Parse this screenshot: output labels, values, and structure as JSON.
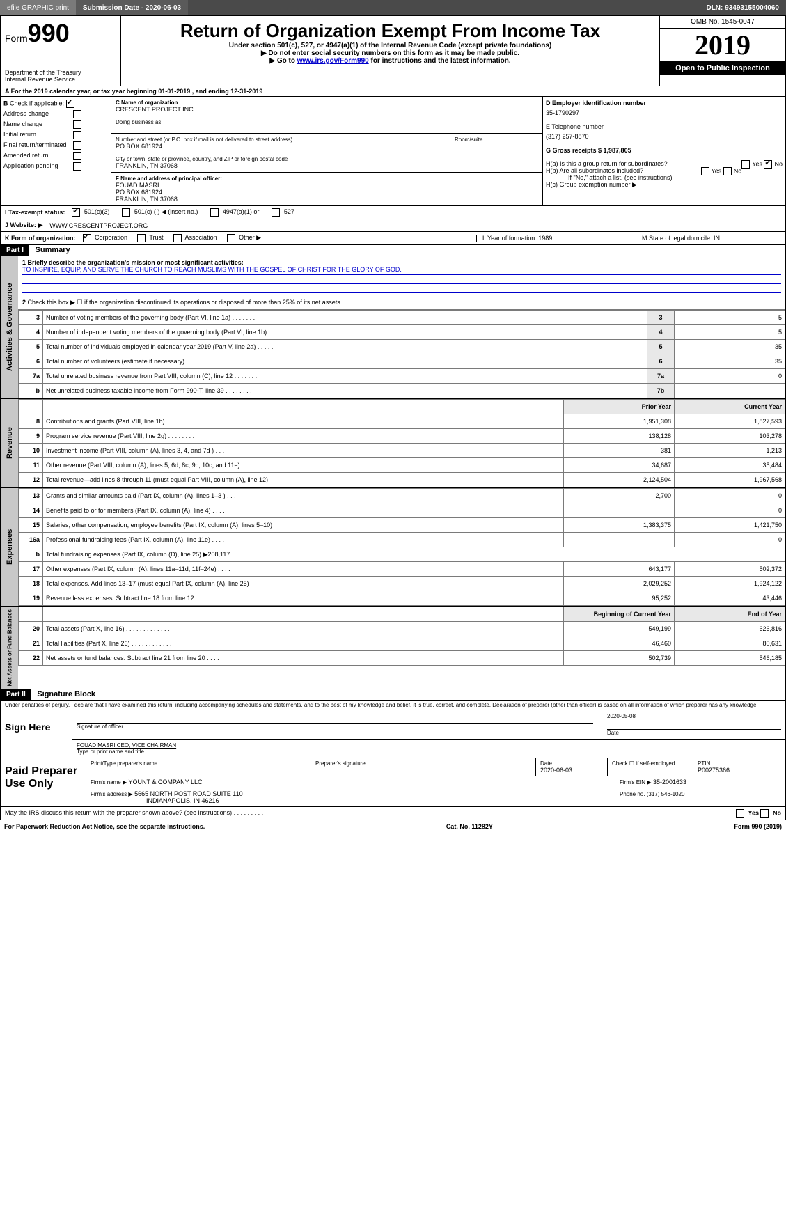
{
  "topbar": {
    "efile": "efile GRAPHIC print",
    "submission_label": "Submission Date - 2020-06-03",
    "dln": "DLN: 93493155004060"
  },
  "header": {
    "form_prefix": "Form",
    "form_number": "990",
    "dept": "Department of the Treasury",
    "irs": "Internal Revenue Service",
    "title": "Return of Organization Exempt From Income Tax",
    "sub1": "Under section 501(c), 527, or 4947(a)(1) of the Internal Revenue Code (except private foundations)",
    "sub2": "▶ Do not enter social security numbers on this form as it may be made public.",
    "sub3_pre": "▶ Go to ",
    "sub3_link": "www.irs.gov/Form990",
    "sub3_post": " for instructions and the latest information.",
    "omb": "OMB No. 1545-0047",
    "year": "2019",
    "open": "Open to Public Inspection"
  },
  "row_a": "A   For the 2019 calendar year, or tax year beginning 01-01-2019      , and ending 12-31-2019",
  "col_b": {
    "label": "B",
    "check_if": "Check if applicable:",
    "items": [
      "Address change",
      "Name change",
      "Initial return",
      "Final return/terminated",
      "Amended return",
      "Application pending"
    ]
  },
  "col_c": {
    "name_label": "C Name of organization",
    "name": "CRESCENT PROJECT INC",
    "dba_label": "Doing business as",
    "dba": "",
    "street_label": "Number and street (or P.O. box if mail is not delivered to street address)",
    "street": "PO BOX 681924",
    "room_label": "Room/suite",
    "city_label": "City or town, state or province, country, and ZIP or foreign postal code",
    "city": "FRANKLIN, TN  37068",
    "f_label": "F Name and address of principal officer:",
    "f_name": "FOUAD MASRI",
    "f_street": "PO BOX 681924",
    "f_city": "FRANKLIN, TN  37068"
  },
  "col_d": {
    "ein_label": "D Employer identification number",
    "ein": "35-1790297",
    "tel_label": "E Telephone number",
    "tel": "(317) 257-8870",
    "gross_label": "G Gross receipts $ 1,987,805",
    "ha": "H(a)   Is this a group return for subordinates?",
    "hb": "H(b)   Are all subordinates included?",
    "hb_note": "If \"No,\" attach a list. (see instructions)",
    "hc": "H(c)   Group exemption number ▶"
  },
  "tax_exempt": {
    "label": "I    Tax-exempt status:",
    "opts": [
      "501(c)(3)",
      "501(c) (  ) ◀ (insert no.)",
      "4947(a)(1) or",
      "527"
    ]
  },
  "website": {
    "label": "J    Website: ▶",
    "value": "WWW.CRESCENTPROJECT.ORG"
  },
  "k_row": {
    "label": "K Form of organization:",
    "opts": [
      "Corporation",
      "Trust",
      "Association",
      "Other ▶"
    ],
    "l": "L Year of formation: 1989",
    "m": "M State of legal domicile: IN"
  },
  "part1": {
    "bar": "Part I",
    "title": "Summary",
    "line1_label": "1   Briefly describe the organization's mission or most significant activities:",
    "line1_text": "TO INSPIRE, EQUIP, AND SERVE THE CHURCH TO REACH MUSLIMS WITH THE GOSPEL OF CHRIST FOR THE GLORY OF GOD.",
    "line2": "Check this box ▶ ☐  if the organization discontinued its operations or disposed of more than 25% of its net assets.",
    "lines_ag": [
      {
        "n": "3",
        "t": "Number of voting members of the governing body (Part VI, line 1a)   .    .    .    .    .    .    .",
        "box": "3",
        "v": "5"
      },
      {
        "n": "4",
        "t": "Number of independent voting members of the governing body (Part VI, line 1b)   .    .    .    .",
        "box": "4",
        "v": "5"
      },
      {
        "n": "5",
        "t": "Total number of individuals employed in calendar year 2019 (Part V, line 2a)   .    .    .    .    .",
        "box": "5",
        "v": "35"
      },
      {
        "n": "6",
        "t": "Total number of volunteers (estimate if necessary)   .    .    .    .    .    .    .    .    .    .    .    .",
        "box": "6",
        "v": "35"
      },
      {
        "n": "7a",
        "t": "Total unrelated business revenue from Part VIII, column (C), line 12   .    .    .    .    .    .    .",
        "box": "7a",
        "v": "0"
      },
      {
        "n": "b",
        "t": "Net unrelated business taxable income from Form 990-T, line 39   .    .    .    .    .    .    .    .",
        "box": "7b",
        "v": ""
      }
    ],
    "col_hdr_prior": "Prior Year",
    "col_hdr_current": "Current Year",
    "revenue": [
      {
        "n": "8",
        "t": "Contributions and grants (Part VIII, line 1h)   .    .    .    .    .    .    .    .",
        "p": "1,951,308",
        "c": "1,827,593"
      },
      {
        "n": "9",
        "t": "Program service revenue (Part VIII, line 2g)   .    .    .    .    .    .    .    .",
        "p": "138,128",
        "c": "103,278"
      },
      {
        "n": "10",
        "t": "Investment income (Part VIII, column (A), lines 3, 4, and 7d )   .    .    .",
        "p": "381",
        "c": "1,213"
      },
      {
        "n": "11",
        "t": "Other revenue (Part VIII, column (A), lines 5, 6d, 8c, 9c, 10c, and 11e)",
        "p": "34,687",
        "c": "35,484"
      },
      {
        "n": "12",
        "t": "Total revenue—add lines 8 through 11 (must equal Part VIII, column (A), line 12)",
        "p": "2,124,504",
        "c": "1,967,568"
      }
    ],
    "expenses": [
      {
        "n": "13",
        "t": "Grants and similar amounts paid (Part IX, column (A), lines 1–3 )   .    .    .",
        "p": "2,700",
        "c": "0"
      },
      {
        "n": "14",
        "t": "Benefits paid to or for members (Part IX, column (A), line 4)   .    .    .    .",
        "p": "",
        "c": "0"
      },
      {
        "n": "15",
        "t": "Salaries, other compensation, employee benefits (Part IX, column (A), lines 5–10)",
        "p": "1,383,375",
        "c": "1,421,750"
      },
      {
        "n": "16a",
        "t": "Professional fundraising fees (Part IX, column (A), line 11e)   .    .    .    .",
        "p": "",
        "c": "0"
      },
      {
        "n": "b",
        "t": "Total fundraising expenses (Part IX, column (D), line 25) ▶208,117",
        "p": "—skip—",
        "c": "—skip—"
      },
      {
        "n": "17",
        "t": "Other expenses (Part IX, column (A), lines 11a–11d, 11f–24e)   .    .    .    .",
        "p": "643,177",
        "c": "502,372"
      },
      {
        "n": "18",
        "t": "Total expenses. Add lines 13–17 (must equal Part IX, column (A), line 25)",
        "p": "2,029,252",
        "c": "1,924,122"
      },
      {
        "n": "19",
        "t": "Revenue less expenses. Subtract line 18 from line 12   .    .    .    .    .    .",
        "p": "95,252",
        "c": "43,446"
      }
    ],
    "na_hdr_begin": "Beginning of Current Year",
    "na_hdr_end": "End of Year",
    "netassets": [
      {
        "n": "20",
        "t": "Total assets (Part X, line 16)   .    .    .    .    .    .    .    .    .    .    .    .    .",
        "p": "549,199",
        "c": "626,816"
      },
      {
        "n": "21",
        "t": "Total liabilities (Part X, line 26)   .    .    .    .    .    .    .    .    .    .    .    .",
        "p": "46,460",
        "c": "80,631"
      },
      {
        "n": "22",
        "t": "Net assets or fund balances. Subtract line 21 from line 20   .    .    .    .",
        "p": "502,739",
        "c": "546,185"
      }
    ]
  },
  "part2": {
    "bar": "Part II",
    "title": "Signature Block",
    "perjury": "Under penalties of perjury, I declare that I have examined this return, including accompanying schedules and statements, and to the best of my knowledge and belief, it is true, correct, and complete. Declaration of preparer (other than officer) is based on all information of which preparer has any knowledge.",
    "sign_here": "Sign Here",
    "sig_officer": "Signature of officer",
    "sig_date": "2020-05-08",
    "date_label": "Date",
    "officer_name": "FOUAD MASRI  CEO, VICE CHAIRMAN",
    "type_name": "Type or print name and title"
  },
  "paid": {
    "label": "Paid Preparer Use Only",
    "print_type": "Print/Type preparer's name",
    "prep_sig": "Preparer's signature",
    "date_label": "Date",
    "date": "2020-06-03",
    "check_label": "Check ☐ if self-employed",
    "ptin_label": "PTIN",
    "ptin": "P00275366",
    "firm_name_label": "Firm's name    ▶",
    "firm_name": "YOUNT & COMPANY LLC",
    "firm_ein_label": "Firm's EIN ▶",
    "firm_ein": "35-2001633",
    "firm_addr_label": "Firm's address ▶",
    "firm_addr1": "5665 NORTH POST ROAD SUITE 110",
    "firm_addr2": "INDIANAPOLIS, IN  46216",
    "phone_label": "Phone no. (317) 546-1020"
  },
  "footer": {
    "discuss": "May the IRS discuss this return with the preparer shown above? (see instructions)   .    .    .    .    .    .    .    .    .",
    "yes": "Yes",
    "no": "No",
    "pra": "For Paperwork Reduction Act Notice, see the separate instructions.",
    "cat": "Cat. No. 11282Y",
    "form": "Form 990 (2019)"
  },
  "vtabs": {
    "ag": "Activities & Governance",
    "rev": "Revenue",
    "exp": "Expenses",
    "na": "Net Assets or Fund Balances"
  }
}
